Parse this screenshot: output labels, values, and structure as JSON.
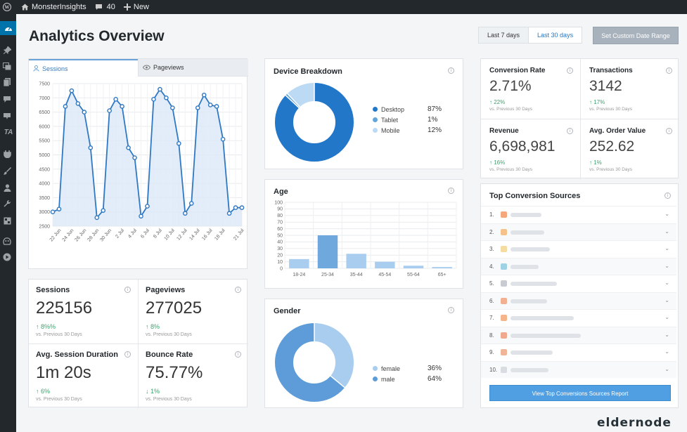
{
  "admin_bar": {
    "site_name": "MonsterInsights",
    "comments_count": "40",
    "new_label": "New"
  },
  "sidebar_icons": [
    "dashboard-icon",
    "pin-icon",
    "media-icon",
    "pages-icon",
    "comments-icon",
    "feedback-icon",
    "ta-icon",
    "plugins-icon",
    "appearance-icon",
    "users-icon",
    "tools-icon",
    "settings-icon",
    "insights-icon",
    "play-icon"
  ],
  "sidebar_ta_text": "TA",
  "page_title": "Analytics Overview",
  "date_range": {
    "last7": "Last 7 days",
    "last30": "Last 30 days",
    "selected": "Last 30 days",
    "custom": "Set Custom Date Range"
  },
  "sessions_chart": {
    "tabs": {
      "sessions": "Sessions",
      "pageviews": "Pageviews"
    },
    "active_tab": "Sessions",
    "chart_data": {
      "type": "area",
      "title": "",
      "xlabel": "",
      "ylabel": "",
      "ylim": [
        2500,
        7500
      ],
      "yticks": [
        7500,
        7000,
        6500,
        6000,
        5500,
        5000,
        4500,
        4000,
        3500,
        3000,
        2500
      ],
      "x_tick_labels": [
        "22 Jun",
        "24 Jun",
        "26 Jun",
        "28 Jun",
        "30 Jun",
        "2 Jul",
        "4 Jul",
        "6 Jul",
        "8 Jul",
        "10 Jul",
        "12 Jul",
        "14 Jul",
        "16 Jul",
        "18 Jul",
        "21 Jul"
      ],
      "x": [
        "21 Jun",
        "22 Jun",
        "23 Jun",
        "24 Jun",
        "25 Jun",
        "26 Jun",
        "27 Jun",
        "28 Jun",
        "29 Jun",
        "30 Jun",
        "1 Jul",
        "2 Jul",
        "3 Jul",
        "4 Jul",
        "5 Jul",
        "6 Jul",
        "7 Jul",
        "8 Jul",
        "9 Jul",
        "10 Jul",
        "11 Jul",
        "12 Jul",
        "13 Jul",
        "14 Jul",
        "15 Jul",
        "16 Jul",
        "17 Jul",
        "18 Jul",
        "19 Jul",
        "20 Jul",
        "21 Jul"
      ],
      "series": [
        {
          "values": [
            3000,
            3100,
            6700,
            7250,
            6800,
            6500,
            5250,
            2800,
            3050,
            6550,
            6950,
            6700,
            5250,
            4900,
            2850,
            3200,
            6950,
            7300,
            7000,
            6650,
            5400,
            2950,
            3300,
            6650,
            7100,
            6750,
            6700,
            5550,
            2950,
            3150,
            3150
          ]
        }
      ],
      "grid": true,
      "color": "#2f78c4",
      "fill": "#dce9f7"
    }
  },
  "stats": [
    {
      "label": "Sessions",
      "value": "225156",
      "change": "8%%",
      "direction": "up",
      "vs": "vs. Previous 30 Days"
    },
    {
      "label": "Pageviews",
      "value": "277025",
      "change": "8%",
      "direction": "up",
      "vs": "vs. Previous 30 Days"
    },
    {
      "label": "Avg. Session Duration",
      "value": "1m 20s",
      "change": "6%",
      "direction": "up",
      "vs": "vs. Previous 30 Days"
    },
    {
      "label": "Bounce Rate",
      "value": "75.77%",
      "change": "1%",
      "direction": "down",
      "vs": "vs. Previous 30 Days"
    }
  ],
  "device": {
    "title": "Device Breakdown",
    "chart_data": {
      "type": "pie",
      "title": "",
      "labels": [
        "Desktop",
        "Tablet",
        "Mobile"
      ],
      "values": [
        87,
        1,
        12
      ],
      "display_values": [
        "87%",
        "1%",
        "12%"
      ],
      "colors": [
        "#2277c9",
        "#62a5db",
        "#bcdaf4"
      ]
    }
  },
  "age": {
    "title": "Age",
    "chart_data": {
      "type": "bar",
      "title": "",
      "xlabel": "",
      "ylabel": "",
      "categories": [
        "18-24",
        "25-34",
        "35-44",
        "45-54",
        "55-64",
        "65+"
      ],
      "values": [
        14,
        50,
        22,
        10,
        4,
        2
      ],
      "ylim": [
        0,
        100
      ],
      "yticks": [
        100,
        90,
        80,
        70,
        60,
        50,
        40,
        30,
        20,
        10,
        0
      ],
      "grid": true,
      "color": "#a9cdee",
      "highlight_color": "#6fa8dc",
      "highlight_index": 1
    }
  },
  "gender": {
    "title": "Gender",
    "chart_data": {
      "type": "pie",
      "title": "",
      "labels": [
        "female",
        "male"
      ],
      "values": [
        36,
        64
      ],
      "display_values": [
        "36%",
        "64%"
      ],
      "colors": [
        "#a9cdee",
        "#5d9cd8"
      ]
    }
  },
  "conversions": [
    {
      "label": "Conversion Rate",
      "value": "2.71%",
      "change": "22%",
      "vs": "vs. Previous 30 Days"
    },
    {
      "label": "Transactions",
      "value": "3142",
      "change": "17%",
      "vs": "vs. Previous 30 Days"
    },
    {
      "label": "Revenue",
      "value": "6,698,981",
      "change": "16%",
      "vs": "vs. Previous 30 Days"
    },
    {
      "label": "Avg. Order Value",
      "value": "252.62",
      "change": "1%",
      "vs": "vs. Previous 30 Days"
    }
  ],
  "top_sources": {
    "title": "Top Conversion Sources",
    "items": [
      {
        "num": "1.",
        "favicon_color": "#f4a87c"
      },
      {
        "num": "2.",
        "favicon_color": "#f6c28b"
      },
      {
        "num": "3.",
        "favicon_color": "#f6dca0"
      },
      {
        "num": "4.",
        "favicon_color": "#9ed3e6"
      },
      {
        "num": "5.",
        "favicon_color": "#c8ccd2"
      },
      {
        "num": "6.",
        "favicon_color": "#f2b090"
      },
      {
        "num": "7.",
        "favicon_color": "#f5b48a"
      },
      {
        "num": "8.",
        "favicon_color": "#f1a98e"
      },
      {
        "num": "9.",
        "favicon_color": "#f0b497"
      },
      {
        "num": "10.",
        "favicon_color": "#d9dde1"
      }
    ],
    "report_button": "View Top Conversions Sources Report"
  },
  "brand": "eldernode"
}
